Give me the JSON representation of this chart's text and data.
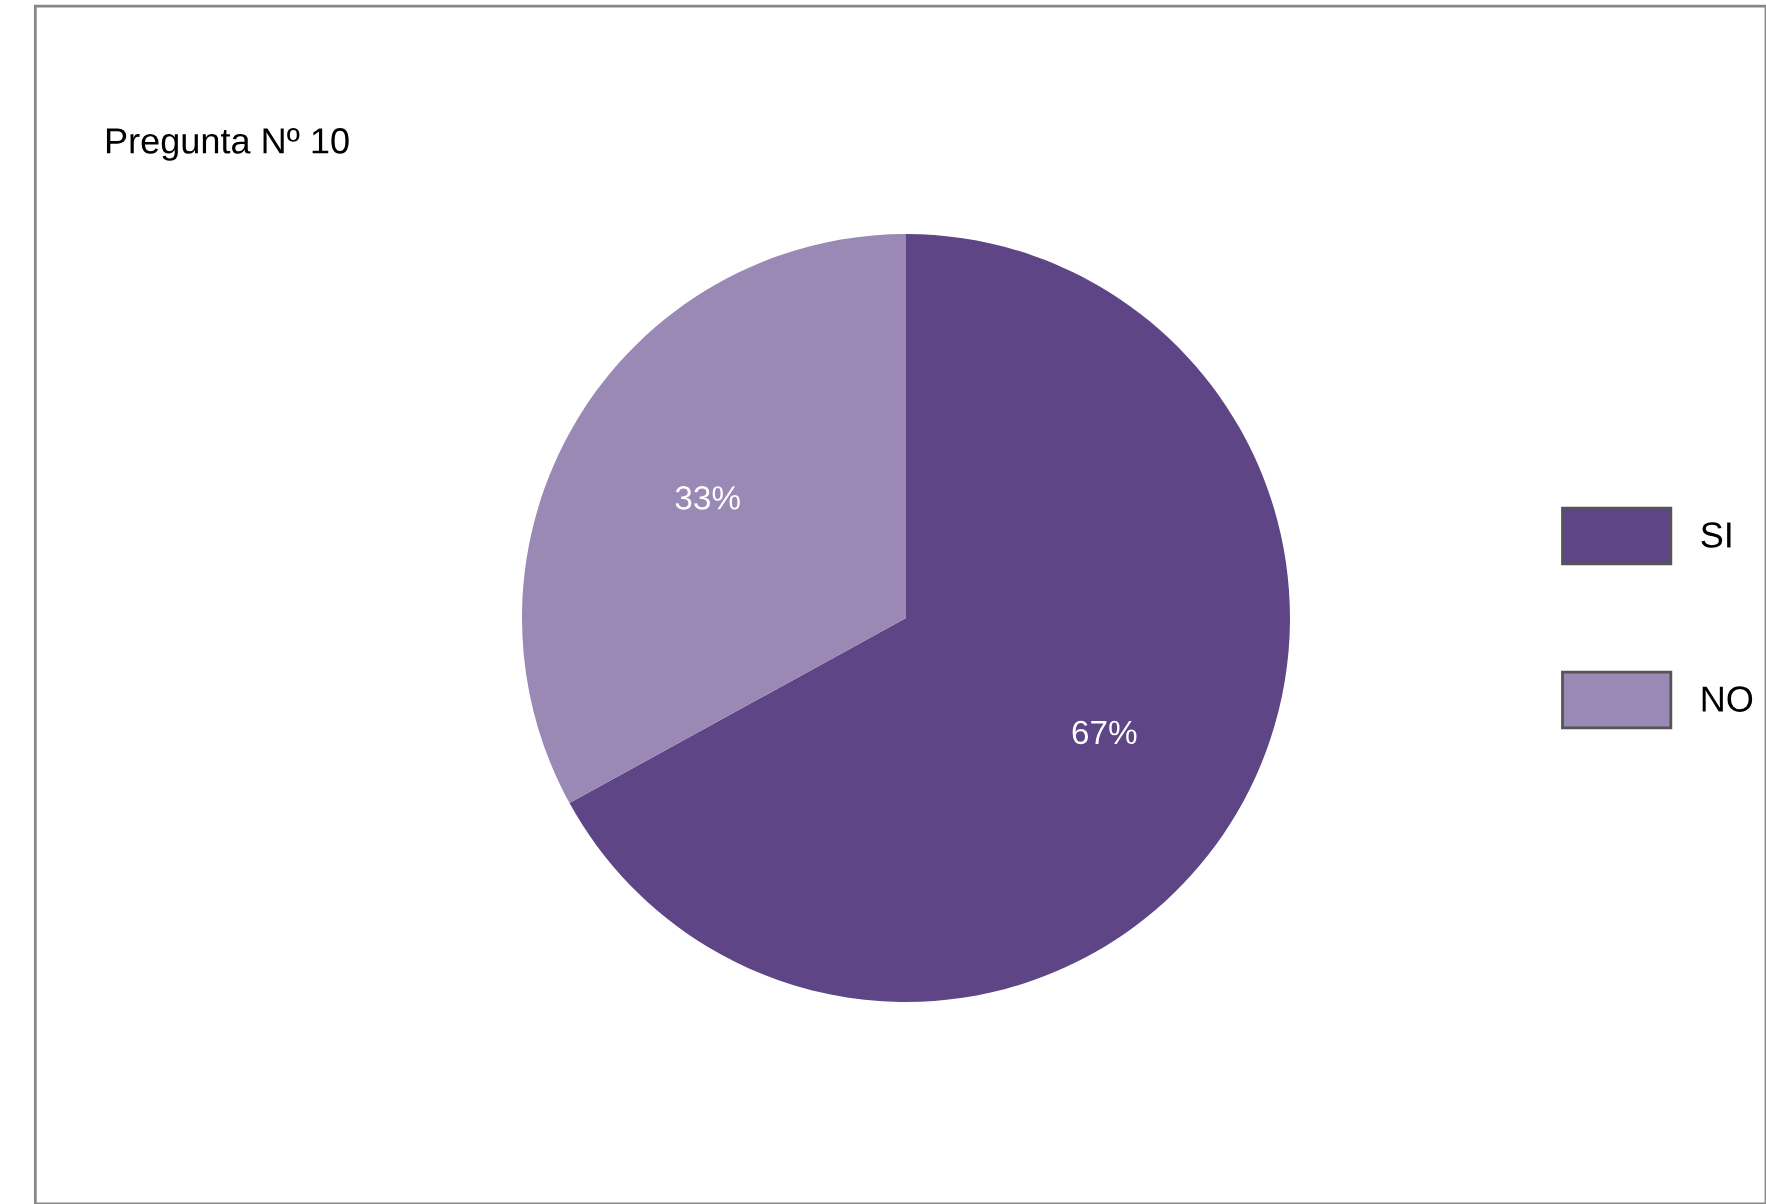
{
  "chart_data": {
    "type": "pie",
    "title": "Pregunta Nº 10",
    "categories": [
      "SI",
      "NO"
    ],
    "values": [
      67,
      33
    ],
    "colors": [
      "#5e4585",
      "#9a88b5"
    ],
    "value_labels": [
      "67%",
      "33%"
    ],
    "legend": "right"
  }
}
